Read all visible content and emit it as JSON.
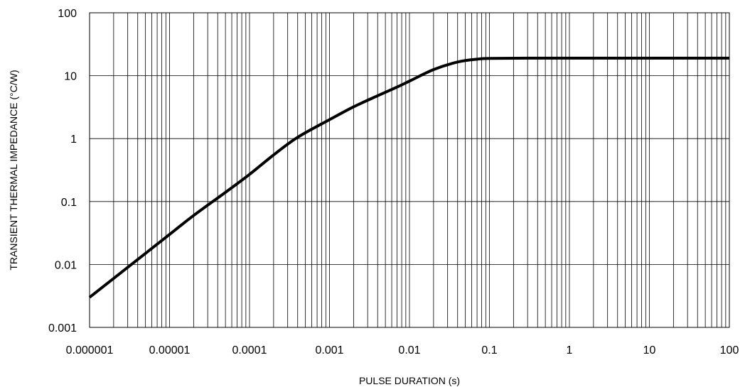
{
  "chart_data": {
    "type": "line",
    "title": "",
    "xlabel": "PULSE DURATION (s)",
    "ylabel": "TRANSIENT THERMAL IMPEDANCE (°C/W)",
    "x_scale": "log",
    "y_scale": "log",
    "xlim": [
      1e-06,
      100
    ],
    "ylim": [
      0.001,
      100
    ],
    "grid": true,
    "legend": "none",
    "x_tick_labels": [
      "0.000001",
      "0.00001",
      "0.0001",
      "0.001",
      "0.01",
      "0.1",
      "1",
      "10",
      "100"
    ],
    "y_tick_labels": [
      "100",
      "10",
      "1",
      "0.1",
      "0.01",
      "0.001"
    ],
    "series": [
      {
        "color": "#000000",
        "x": [
          1e-06,
          2e-06,
          5e-06,
          1e-05,
          2e-05,
          5e-05,
          0.0001,
          0.0002,
          0.0004,
          0.001,
          0.002,
          0.004,
          0.007,
          0.01,
          0.02,
          0.04,
          0.07,
          0.1,
          0.3,
          1,
          10,
          100
        ],
        "y": [
          0.003,
          0.006,
          0.015,
          0.03,
          0.06,
          0.14,
          0.27,
          0.55,
          1.05,
          2.0,
          3.2,
          4.8,
          6.6,
          8.2,
          12.5,
          16.5,
          18.3,
          18.8,
          19.0,
          19.0,
          19.0,
          19.0
        ]
      }
    ]
  }
}
